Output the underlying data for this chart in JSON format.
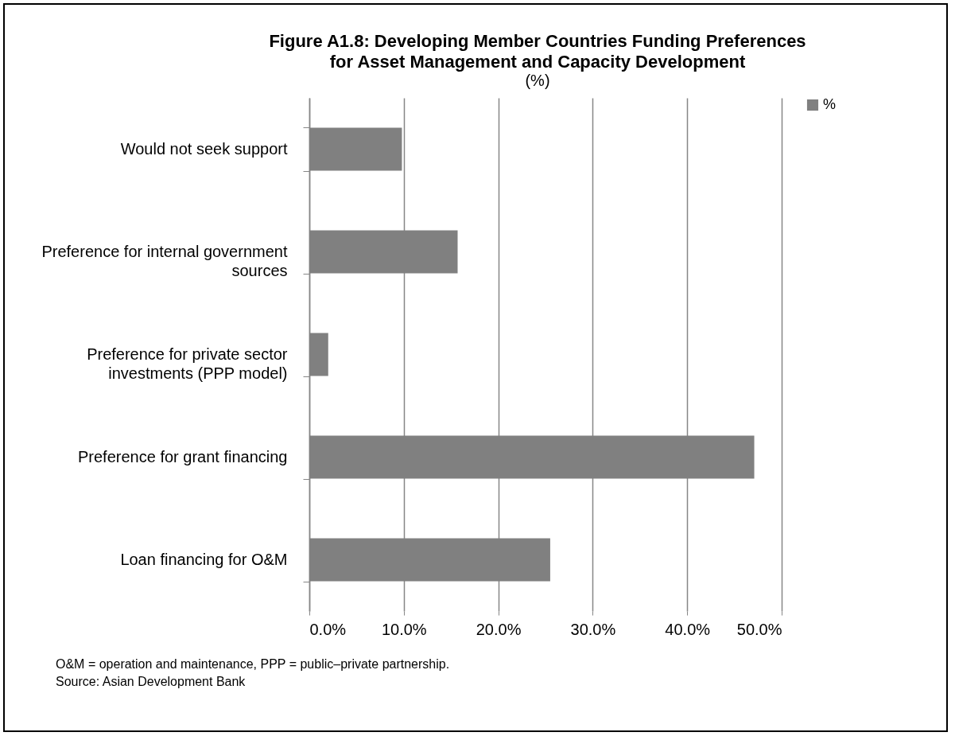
{
  "chart_data": {
    "type": "bar",
    "orientation": "horizontal",
    "title": "Figure A1.8: Developing Member Countries Funding Preferences for Asset Management and Capacity Development",
    "subtitle": "(%)",
    "categories": [
      "Would not seek support",
      "Preference for internal government sources",
      "Preference for private sector investments (PPP model)",
      "Preference for grant financing",
      "Loan financing for O&M"
    ],
    "series": [
      {
        "name": "%",
        "color": "#808080",
        "values": [
          9.8,
          15.7,
          2.0,
          47.1,
          25.5
        ]
      }
    ],
    "xlim": [
      0,
      50
    ],
    "xticks": [
      {
        "value": 0,
        "label": "0.0%"
      },
      {
        "value": 10,
        "label": "10.0%"
      },
      {
        "value": 20,
        "label": "20.0%"
      },
      {
        "value": 30,
        "label": "30.0%"
      },
      {
        "value": 40,
        "label": "40.0%"
      },
      {
        "value": 50,
        "label": "50.0%"
      }
    ],
    "grid": "x",
    "legend": "right",
    "annotations": [
      "O&M = operation and maintenance, PPP = public–private partnership.",
      "Source: Asian Development Bank"
    ]
  }
}
